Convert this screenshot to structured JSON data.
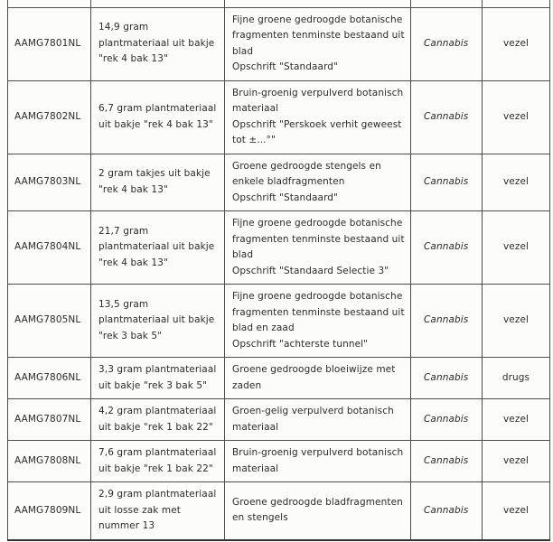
{
  "table": {
    "species_color": "#2b2b2b",
    "rows": [
      {
        "id": "AAMG7801NL",
        "sample": "14,9 gram plantmateriaal uit bakje \"rek 4 bak 13\"",
        "description": "Fijne groene gedroogde botanische fragmenten tenminste bestaand uit blad\nOpschrift \"Standaard\"",
        "species": "Cannabis",
        "classification": "vezel"
      },
      {
        "id": "AAMG7802NL",
        "sample": "6,7 gram plantmateriaal uit bakje \"rek 4 bak 13\"",
        "description": "Bruin-groenig verpulverd botanisch materiaal\nOpschrift \"Perskoek verhit geweest tot ±...°\"",
        "species": "Cannabis",
        "classification": "vezel"
      },
      {
        "id": "AAMG7803NL",
        "sample": "2 gram takjes uit bakje \"rek 4 bak 13\"",
        "description": "Groene gedroogde stengels en enkele bladfragmenten\nOpschrift \"Standaard\"",
        "species": "Cannabis",
        "classification": "vezel"
      },
      {
        "id": "AAMG7804NL",
        "sample": "21,7 gram plantmateriaal uit bakje \"rek 4 bak 13\"",
        "description": "Fijne groene gedroogde botanische fragmenten tenminste bestaand uit blad\nOpschrift \"Standaard Selectie 3\"",
        "species": "Cannabis",
        "classification": "vezel"
      },
      {
        "id": "AAMG7805NL",
        "sample": "13,5 gram plantmateriaal uit bakje \"rek 3 bak 5\"",
        "description": "Fijne groene gedroogde botanische fragmenten tenminste bestaand uit blad en zaad\nOpschrift \"achterste tunnel\"",
        "species": "Cannabis",
        "classification": "vezel"
      },
      {
        "id": "AAMG7806NL",
        "sample": "3,3 gram plantmateriaal uit bakje \"rek 3 bak 5\"",
        "description": "Groene gedroogde bloeiwijze met zaden",
        "species": "Cannabis",
        "classification": "drugs"
      },
      {
        "id": "AAMG7807NL",
        "sample": "4,2 gram plantmateriaal uit bakje \"rek 1 bak 22\"",
        "description": "Groen-gelig verpulverd botanisch materiaal",
        "species": "Cannabis",
        "classification": "vezel"
      },
      {
        "id": "AAMG7808NL",
        "sample": "7,6 gram plantmateriaal uit bakje \"rek 1 bak 22\"",
        "description": "Bruin-groenig verpulverd botanisch materiaal",
        "species": "Cannabis",
        "classification": "vezel"
      },
      {
        "id": "AAMG7809NL",
        "sample": "2,9 gram plantmateriaal uit losse zak met nummer 13",
        "description": "Groene gedroogde bladfragmenten en stengels",
        "species": "Cannabis",
        "classification": "vezel"
      }
    ]
  }
}
